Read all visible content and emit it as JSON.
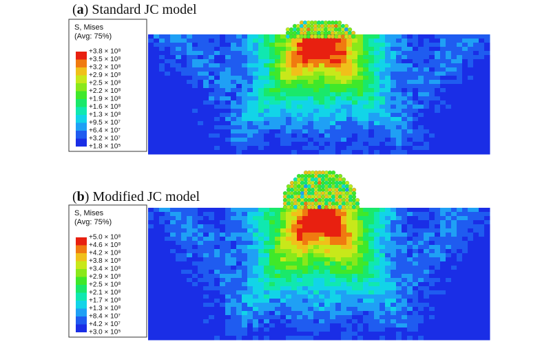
{
  "panels": [
    {
      "title": [
        "(",
        "a",
        ") Standard JC model"
      ],
      "legend": {
        "title": "S, Mises",
        "subtitle": "(Avg: 75%)",
        "labels": [
          "+3.8 × 10⁸",
          "+3.5 × 10⁸",
          "+3.2 × 10⁸",
          "+2.9 × 10⁸",
          "+2.5 × 10⁸",
          "+2.2 × 10⁸",
          "+1.9 × 10⁸",
          "+1.6 × 10⁸",
          "+1.3 × 10⁸",
          "+9.5 × 10⁷",
          "+6.4 × 10⁷",
          "+3.2 × 10⁷",
          "+1.8 × 10⁵"
        ]
      }
    },
    {
      "title": [
        "(",
        "b",
        ") Modified JC model"
      ],
      "legend": {
        "title": "S, Mises",
        "subtitle": "(Avg: 75%)",
        "labels": [
          "+5.0 × 10⁸",
          "+4.6 × 10⁸",
          "+4.2 × 10⁸",
          "+3.8 × 10⁸",
          "+3.4 × 10⁸",
          "+2.9 × 10⁸",
          "+2.5 × 10⁸",
          "+2.1 × 10⁸",
          "+1.7 × 10⁸",
          "+1.3 × 10⁸",
          "+8.4 × 10⁷",
          "+4.2 × 10⁷",
          "+3.0 × 10⁵"
        ]
      }
    }
  ]
}
